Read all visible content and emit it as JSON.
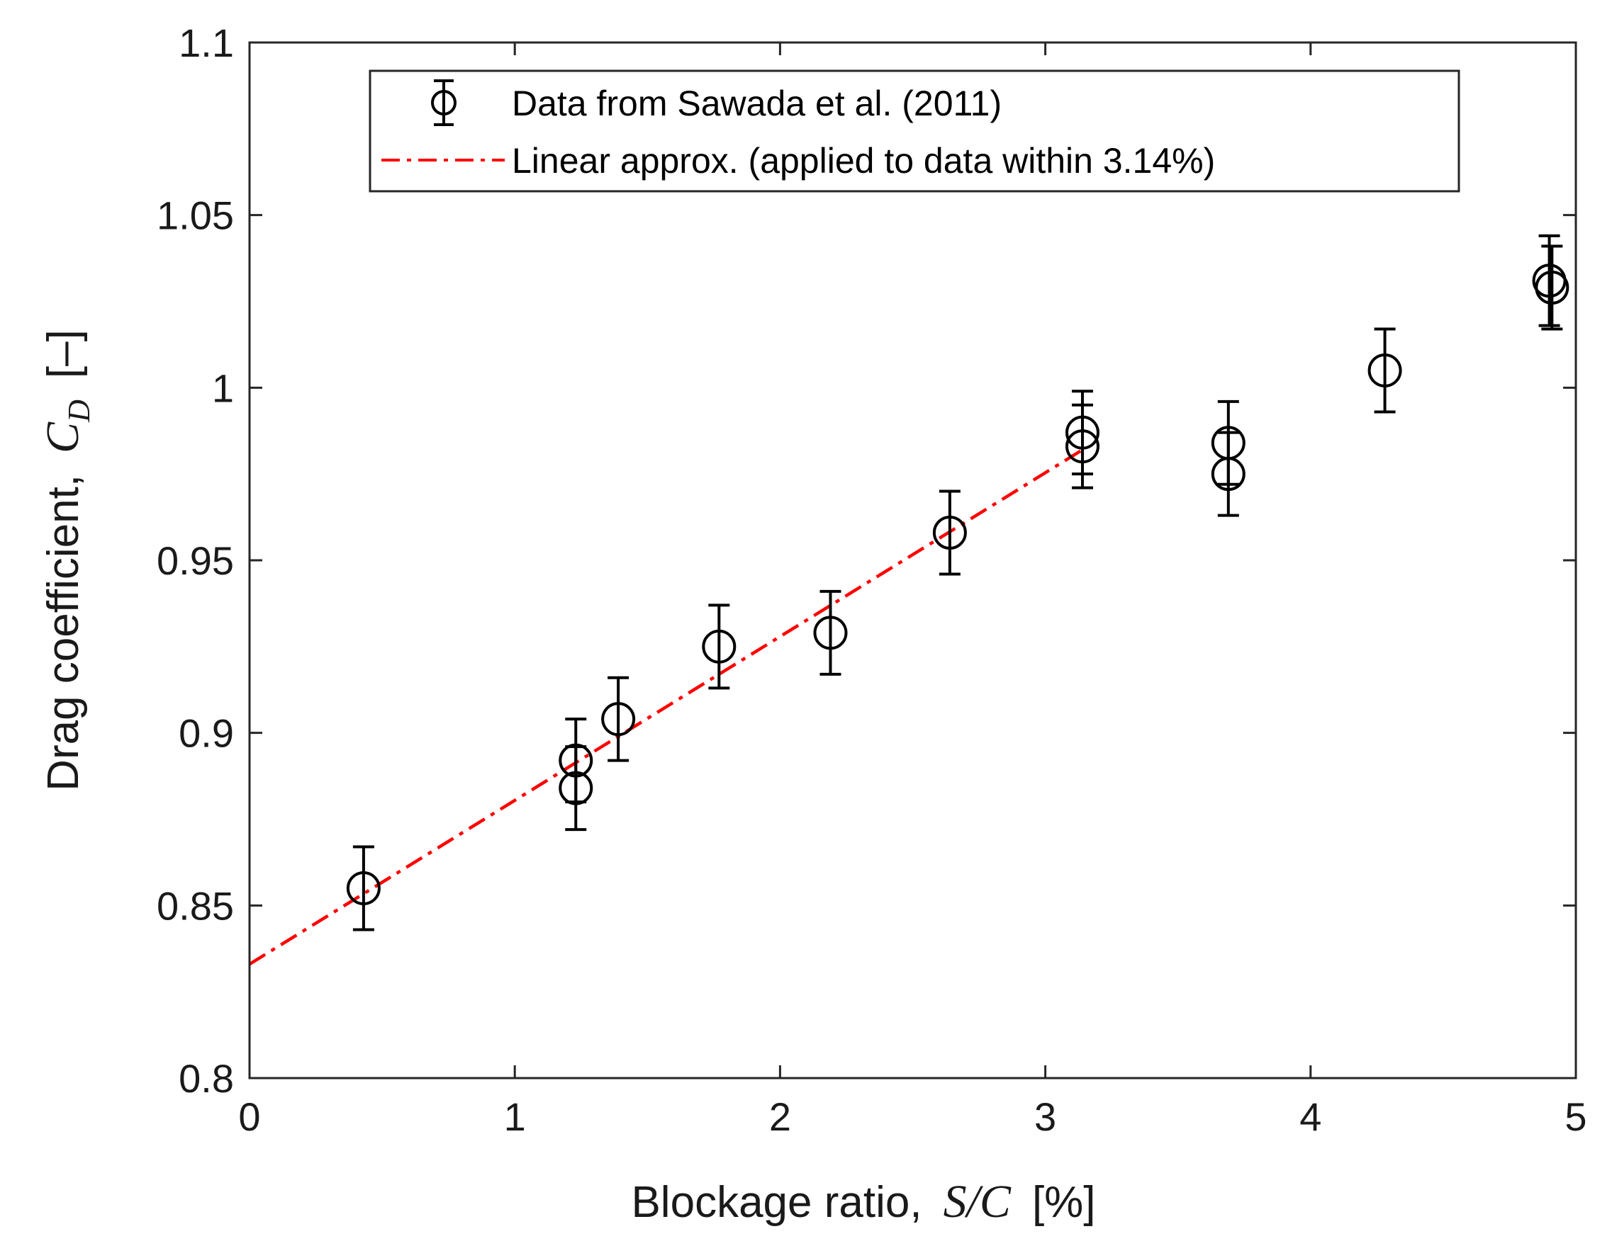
{
  "chart_data": {
    "type": "scatter",
    "title": "",
    "xlabel": {
      "prefix": "Blockage ratio,",
      "var": "S/C",
      "unit": "[%]"
    },
    "ylabel": {
      "prefix": "Drag coefficient,",
      "var": "C",
      "sub": "D",
      "unit": "[–]"
    },
    "xlim": [
      0,
      5
    ],
    "ylim": [
      0.8,
      1.1
    ],
    "xticks": [
      0,
      1,
      2,
      3,
      4,
      5
    ],
    "xtick_labels": [
      "0",
      "1",
      "2",
      "3",
      "4",
      "5"
    ],
    "yticks": [
      0.8,
      0.85,
      0.9,
      0.95,
      1.0,
      1.05,
      1.1
    ],
    "ytick_labels": [
      "0.8",
      "0.85",
      "0.9",
      "0.95",
      "1",
      "1.05",
      "1.1"
    ],
    "legend_position": "top",
    "series": [
      {
        "name": "Data from Sawada et al. (2011)",
        "kind": "errorbar",
        "marker": "circle",
        "color": "#000000",
        "points": [
          {
            "x": 0.43,
            "y": 0.855,
            "err": 0.012
          },
          {
            "x": 1.23,
            "y": 0.892,
            "err": 0.012
          },
          {
            "x": 1.23,
            "y": 0.884,
            "err": 0.012
          },
          {
            "x": 1.39,
            "y": 0.904,
            "err": 0.012
          },
          {
            "x": 1.77,
            "y": 0.925,
            "err": 0.012
          },
          {
            "x": 2.19,
            "y": 0.929,
            "err": 0.012
          },
          {
            "x": 2.64,
            "y": 0.958,
            "err": 0.012
          },
          {
            "x": 3.14,
            "y": 0.987,
            "err": 0.012
          },
          {
            "x": 3.14,
            "y": 0.983,
            "err": 0.012
          },
          {
            "x": 3.69,
            "y": 0.984,
            "err": 0.012
          },
          {
            "x": 3.69,
            "y": 0.975,
            "err": 0.012
          },
          {
            "x": 4.28,
            "y": 1.005,
            "err": 0.012
          },
          {
            "x": 4.9,
            "y": 1.031,
            "err": 0.013
          },
          {
            "x": 4.91,
            "y": 1.029,
            "err": 0.012
          }
        ]
      },
      {
        "name": "Linear approx. (applied to data within 3.14%)",
        "kind": "line",
        "style": "dashdot",
        "color": "#ff0000",
        "x": [
          0,
          3.14
        ],
        "y": [
          0.833,
          0.982
        ]
      }
    ]
  }
}
